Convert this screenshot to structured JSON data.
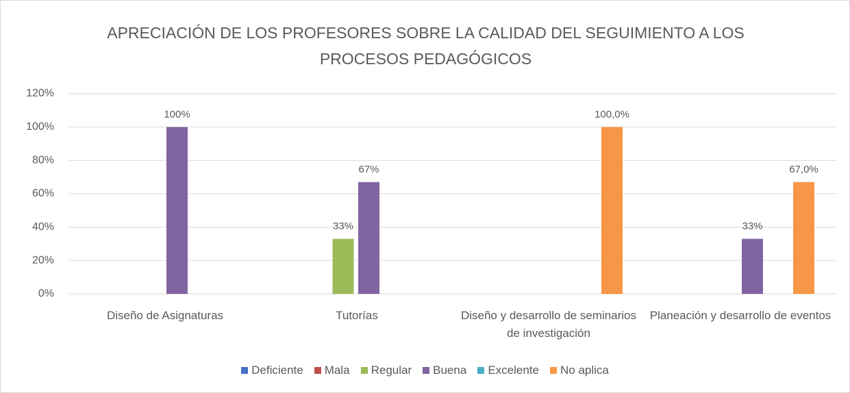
{
  "chart_data": {
    "type": "bar",
    "title": "APRECIACIÓN DE LOS PROFESORES SOBRE LA CALIDAD DEL SEGUIMIENTO A LOS PROCESOS PEDAGÓGICOS",
    "categories": [
      "Diseño de Asignaturas",
      "Tutorías",
      "Diseño y desarrollo de seminarios de investigación",
      "Planeación y desarrollo de eventos"
    ],
    "series": [
      {
        "name": "Deficiente",
        "color": "#4472c4",
        "values": [
          null,
          null,
          null,
          null
        ]
      },
      {
        "name": "Mala",
        "color": "#c0504d",
        "values": [
          null,
          null,
          null,
          null
        ]
      },
      {
        "name": "Regular",
        "color": "#9bbb59",
        "values": [
          null,
          33,
          null,
          null
        ],
        "value_labels": [
          null,
          "33%",
          null,
          null
        ]
      },
      {
        "name": "Buena",
        "color": "#8064a2",
        "values": [
          100,
          67,
          null,
          33
        ],
        "value_labels": [
          "100%",
          "67%",
          null,
          "33%"
        ]
      },
      {
        "name": "Excelente",
        "color": "#4bacc6",
        "values": [
          null,
          null,
          null,
          null
        ]
      },
      {
        "name": "No aplica",
        "color": "#f79646",
        "values": [
          null,
          null,
          100,
          67
        ],
        "value_labels": [
          null,
          null,
          "100,0%",
          "67,0%"
        ]
      }
    ],
    "ylim": [
      0,
      120
    ],
    "yticks": [
      {
        "value": 0,
        "label": "0%"
      },
      {
        "value": 20,
        "label": "20%"
      },
      {
        "value": 40,
        "label": "40%"
      },
      {
        "value": 60,
        "label": "60%"
      },
      {
        "value": 80,
        "label": "80%"
      },
      {
        "value": 100,
        "label": "100%"
      },
      {
        "value": 120,
        "label": "120%"
      }
    ],
    "grid": true,
    "legend": "bottom"
  }
}
